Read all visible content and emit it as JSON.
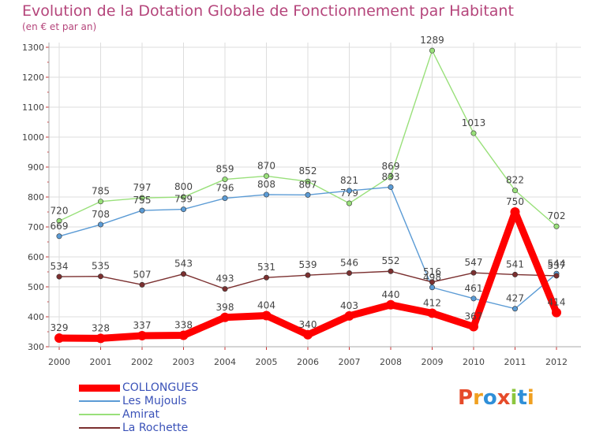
{
  "chart_data": {
    "type": "line",
    "title": "Evolution de la Dotation Globale de Fonctionnement par Habitant",
    "subtitle": "(en € et par an)",
    "x": [
      "2000",
      "2001",
      "2002",
      "2003",
      "2004",
      "2005",
      "2006",
      "2007",
      "2008",
      "2009",
      "2010",
      "2011",
      "2012"
    ],
    "ylim": [
      300,
      1300
    ],
    "yticks": [
      300,
      400,
      500,
      600,
      700,
      800,
      900,
      1000,
      1100,
      1200,
      1300
    ],
    "grid": true,
    "legend_placement": "bottom-left",
    "series": [
      {
        "name": "COLLONGUES",
        "color": "#ff0000",
        "values": [
          329,
          328,
          337,
          338,
          398,
          404,
          340,
          403,
          440,
          412,
          367,
          750,
          414
        ]
      },
      {
        "name": "Les Mujouls",
        "color": "#5b9bd5",
        "values": [
          669,
          708,
          755,
          759,
          796,
          808,
          807,
          821,
          833,
          498,
          461,
          427,
          544
        ]
      },
      {
        "name": "Amirat",
        "color": "#99e07a",
        "values": [
          720,
          785,
          797,
          800,
          859,
          870,
          852,
          779,
          869,
          1289,
          1013,
          822,
          702
        ]
      },
      {
        "name": "La Rochette",
        "color": "#7b3030",
        "values": [
          534,
          535,
          507,
          543,
          493,
          531,
          539,
          546,
          552,
          516,
          547,
          541,
          537
        ]
      }
    ]
  },
  "legend": {
    "items": [
      "COLLONGUES",
      "Les Mujouls",
      "Amirat",
      "La Rochette"
    ]
  },
  "logo": {
    "text": "Proxiti",
    "colors": [
      "#e64b2a",
      "#f0a020",
      "#2f8fd8",
      "#e64b2a",
      "#8cc63f",
      "#2f8fd8",
      "#f0a020"
    ]
  }
}
